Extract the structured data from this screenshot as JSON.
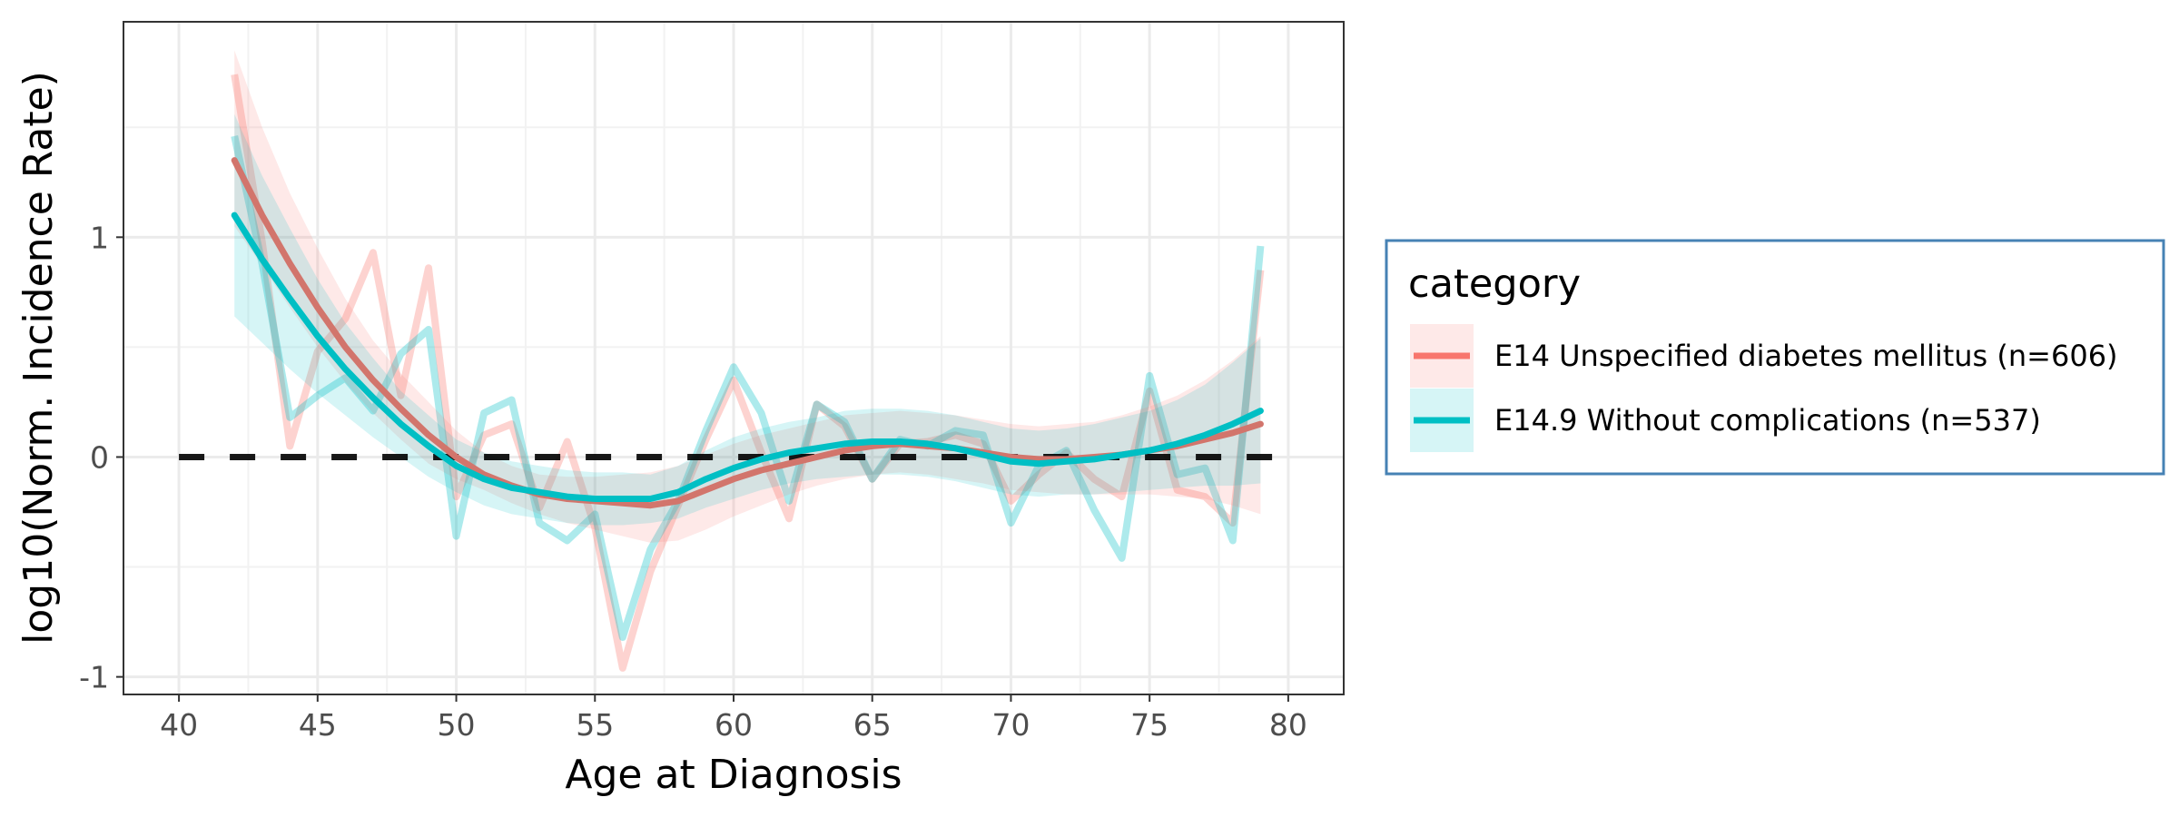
{
  "chart_data": {
    "type": "line",
    "xlabel": "Age at Diagnosis",
    "ylabel": "log10(Norm. Incidence Rate)",
    "xlim": [
      38,
      82
    ],
    "ylim": [
      -1.08,
      1.98
    ],
    "x_ticks": [
      40,
      45,
      50,
      55,
      60,
      65,
      70,
      75,
      80
    ],
    "x_tick_labels": [
      "40",
      "45",
      "50",
      "55",
      "60",
      "65",
      "70",
      "75",
      "80"
    ],
    "y_ticks": [
      -1,
      0,
      1
    ],
    "y_tick_labels": [
      "-1",
      "0",
      "1"
    ],
    "grid": true,
    "reference_line": {
      "y": 0,
      "x_range": [
        40,
        80
      ],
      "style": "dashed",
      "color": "#000000"
    },
    "legend": {
      "title": "category",
      "position": "right"
    },
    "series": [
      {
        "name": "E14 Unspecified diabetes mellitus (n=606)",
        "color": "#F8766D",
        "x": [
          42,
          43,
          44,
          45,
          46,
          47,
          48,
          49,
          50,
          51,
          52,
          53,
          54,
          55,
          56,
          57,
          58,
          59,
          60,
          61,
          62,
          63,
          64,
          65,
          66,
          67,
          68,
          69,
          70,
          71,
          72,
          73,
          74,
          75,
          76,
          77,
          78,
          79
        ],
        "raw": [
          1.74,
          0.98,
          0.05,
          0.48,
          0.63,
          0.93,
          0.28,
          0.86,
          -0.18,
          0.1,
          0.15,
          -0.23,
          0.07,
          -0.32,
          -0.96,
          -0.52,
          -0.22,
          0.08,
          0.35,
          0.02,
          -0.28,
          0.24,
          0.14,
          -0.1,
          0.06,
          0.07,
          0.1,
          0.06,
          -0.2,
          -0.08,
          0.02,
          -0.1,
          -0.18,
          0.3,
          -0.15,
          -0.18,
          -0.3,
          0.85
        ],
        "smooth": [
          1.35,
          1.1,
          0.88,
          0.68,
          0.5,
          0.35,
          0.22,
          0.1,
          0.0,
          -0.08,
          -0.13,
          -0.17,
          -0.19,
          -0.2,
          -0.21,
          -0.22,
          -0.2,
          -0.15,
          -0.1,
          -0.06,
          -0.03,
          0.0,
          0.03,
          0.05,
          0.06,
          0.05,
          0.04,
          0.02,
          0.0,
          -0.01,
          -0.01,
          0.0,
          0.01,
          0.03,
          0.05,
          0.08,
          0.11,
          0.15
        ],
        "ci_low": [
          1.05,
          0.87,
          0.68,
          0.5,
          0.34,
          0.2,
          0.08,
          -0.03,
          -0.1,
          -0.15,
          -0.21,
          -0.26,
          -0.3,
          -0.33,
          -0.36,
          -0.39,
          -0.38,
          -0.33,
          -0.27,
          -0.22,
          -0.17,
          -0.13,
          -0.1,
          -0.08,
          -0.07,
          -0.08,
          -0.1,
          -0.12,
          -0.15,
          -0.16,
          -0.17,
          -0.17,
          -0.17,
          -0.17,
          -0.18,
          -0.19,
          -0.22,
          -0.26
        ],
        "ci_high": [
          1.85,
          1.5,
          1.2,
          0.95,
          0.72,
          0.53,
          0.38,
          0.25,
          0.12,
          0.02,
          -0.04,
          -0.08,
          -0.09,
          -0.09,
          -0.08,
          -0.07,
          -0.04,
          0.01,
          0.06,
          0.1,
          0.13,
          0.16,
          0.19,
          0.2,
          0.21,
          0.2,
          0.19,
          0.17,
          0.15,
          0.14,
          0.15,
          0.16,
          0.19,
          0.23,
          0.28,
          0.35,
          0.44,
          0.55
        ]
      },
      {
        "name": "E14.9 Without complications (n=537)",
        "color": "#00BFC4",
        "x": [
          42,
          43,
          44,
          45,
          46,
          47,
          48,
          49,
          50,
          51,
          52,
          53,
          54,
          55,
          56,
          57,
          58,
          59,
          60,
          61,
          62,
          63,
          64,
          65,
          66,
          67,
          68,
          69,
          70,
          71,
          72,
          73,
          74,
          75,
          76,
          77,
          78,
          79
        ],
        "raw": [
          1.46,
          0.88,
          0.18,
          0.28,
          0.36,
          0.21,
          0.47,
          0.58,
          -0.36,
          0.2,
          0.26,
          -0.3,
          -0.38,
          -0.26,
          -0.82,
          -0.42,
          -0.2,
          0.12,
          0.41,
          0.2,
          -0.2,
          0.24,
          0.16,
          -0.1,
          0.08,
          0.05,
          0.12,
          0.1,
          -0.3,
          -0.04,
          0.03,
          -0.24,
          -0.46,
          0.37,
          -0.08,
          -0.05,
          -0.38,
          0.96
        ],
        "smooth": [
          1.1,
          0.9,
          0.72,
          0.55,
          0.4,
          0.27,
          0.15,
          0.05,
          -0.04,
          -0.1,
          -0.14,
          -0.16,
          -0.18,
          -0.19,
          -0.19,
          -0.19,
          -0.16,
          -0.1,
          -0.05,
          -0.01,
          0.02,
          0.04,
          0.06,
          0.07,
          0.07,
          0.06,
          0.04,
          0.01,
          -0.02,
          -0.03,
          -0.02,
          -0.01,
          0.01,
          0.03,
          0.06,
          0.1,
          0.15,
          0.21
        ],
        "ci_low": [
          0.64,
          0.52,
          0.4,
          0.29,
          0.19,
          0.09,
          0.0,
          -0.09,
          -0.16,
          -0.22,
          -0.26,
          -0.28,
          -0.3,
          -0.31,
          -0.31,
          -0.3,
          -0.28,
          -0.23,
          -0.19,
          -0.15,
          -0.12,
          -0.1,
          -0.09,
          -0.08,
          -0.08,
          -0.09,
          -0.11,
          -0.14,
          -0.17,
          -0.18,
          -0.17,
          -0.17,
          -0.16,
          -0.15,
          -0.14,
          -0.13,
          -0.13,
          -0.12
        ],
        "ci_high": [
          1.56,
          1.28,
          1.04,
          0.81,
          0.61,
          0.45,
          0.3,
          0.19,
          0.08,
          0.02,
          -0.02,
          -0.04,
          -0.06,
          -0.07,
          -0.07,
          -0.08,
          -0.04,
          0.03,
          0.09,
          0.13,
          0.16,
          0.18,
          0.21,
          0.22,
          0.22,
          0.21,
          0.19,
          0.16,
          0.13,
          0.12,
          0.13,
          0.15,
          0.18,
          0.21,
          0.26,
          0.33,
          0.43,
          0.54
        ]
      }
    ]
  }
}
